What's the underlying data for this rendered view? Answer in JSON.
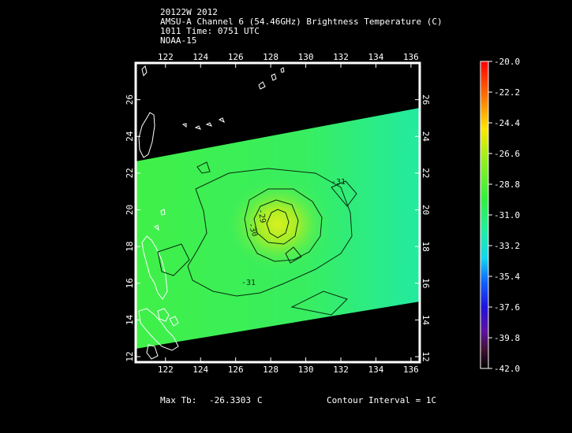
{
  "header": {
    "line1": "20122W 2012",
    "line2": "AMSU-A Channel 6 (54.46GHz) Brightness Temperature (C)",
    "line3": "1011 Time: 0751 UTC",
    "line4": "NOAA-15"
  },
  "map": {
    "lon_ticks": [
      "122",
      "124",
      "126",
      "128",
      "130",
      "132",
      "134",
      "136"
    ],
    "lat_ticks": [
      "12",
      "14",
      "16",
      "18",
      "20",
      "22",
      "24",
      "26"
    ],
    "lon_range": [
      120.3,
      136.5
    ],
    "lat_range": [
      11.7,
      28.0
    ],
    "swath_color": "#3cf060",
    "contour_labels": [
      "-31",
      "-30",
      "-29",
      "-31"
    ]
  },
  "colorbar": {
    "ticks": [
      "-20.0",
      "-22.2",
      "-24.4",
      "-26.6",
      "-28.8",
      "-31.0",
      "-33.2",
      "-35.4",
      "-37.6",
      "-39.8",
      "-42.0"
    ]
  },
  "footer": {
    "max_tb_label": "Max Tb:",
    "max_tb_value": "-26.3303",
    "max_tb_unit": "C",
    "contour_interval": "Contour Interval = 1C"
  }
}
